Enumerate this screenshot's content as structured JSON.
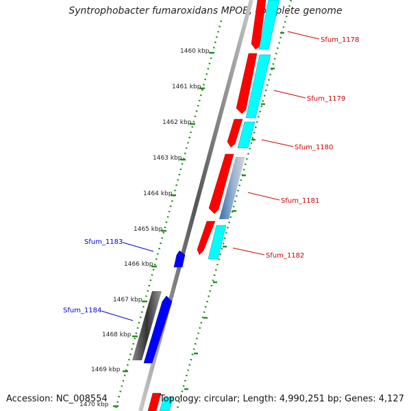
{
  "title": "Syntrophobacter fumaroxidans MPOB, complete genome",
  "footer": {
    "accession": "Accession: NC_008554",
    "summary": "Topology: circular; Length: 4,990,251 bp; Genes: 4,127"
  },
  "colors": {
    "forward_label": "#cc0000",
    "reverse_label": "#0000cc",
    "cds_red": "#ff0000",
    "cds_cyan": "#00ffff",
    "cds_blue": "#0000ff",
    "grey_track": "#555555",
    "ticks": "#228b22"
  },
  "kbp_labels": [
    "1460 kbp",
    "1461 kbp",
    "1462 kbp",
    "1463 kbp",
    "1464 kbp",
    "1465 kbp",
    "1466 kbp",
    "1467 kbp",
    "1468 kbp",
    "1469 kbp",
    "1470 kbp"
  ],
  "forward_genes": [
    "Sfum_1178",
    "Sfum_1179",
    "Sfum_1180",
    "Sfum_1181",
    "Sfum_1182"
  ],
  "reverse_genes": [
    "Sfum_1183",
    "Sfum_1184"
  ]
}
